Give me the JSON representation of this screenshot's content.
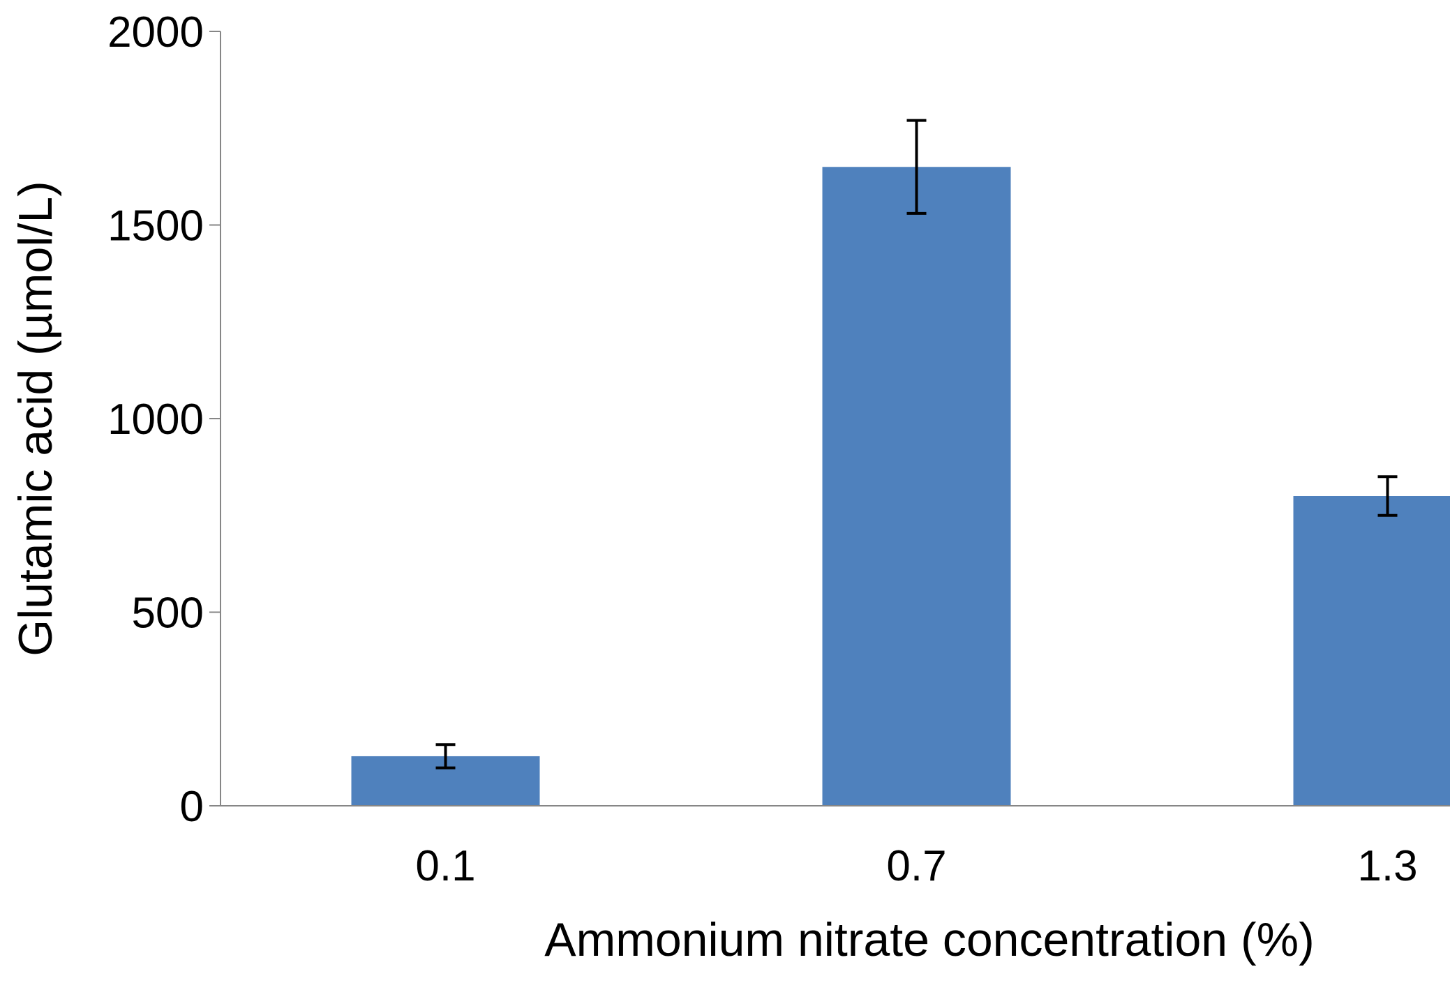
{
  "chart_data": {
    "type": "bar",
    "title": "",
    "categories": [
      "0.1",
      "0.7",
      "1.3"
    ],
    "series": [
      {
        "values": [
          128,
          1650,
          800
        ],
        "errors": [
          30,
          120,
          50
        ],
        "color": "#4F81BD"
      }
    ],
    "xlabel": "Ammonium nitrate concentration (%)",
    "ylabel": "Glutamic acid (µmol/L)",
    "ylim": [
      0,
      2000
    ],
    "yticks": [
      0,
      500,
      1000,
      1500,
      2000
    ],
    "grid": false,
    "legend": "none"
  }
}
